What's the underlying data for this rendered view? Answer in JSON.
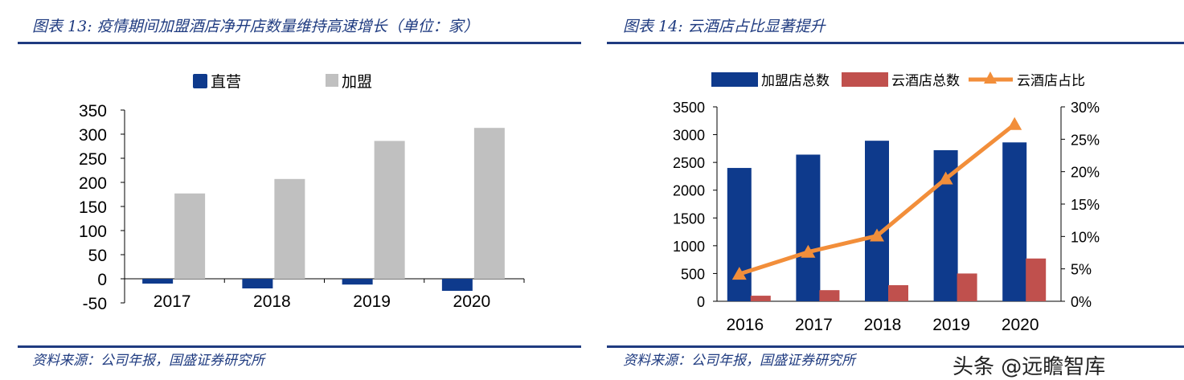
{
  "left": {
    "title": "图表 13:  疫情期间加盟酒店净开店数量维持高速增长（单位：家）",
    "source": "资料来源：公司年报，国盛证券研究所"
  },
  "right": {
    "title": "图表 14:  云酒店占比显著提升",
    "source": "资料来源：公司年报，国盛证券研究所"
  },
  "watermark": "头条 @远瞻智库",
  "colors": {
    "navy": "#0e3a8c",
    "gray": "#c0c0c0",
    "red": "#c0504d",
    "orange": "#f28e3a",
    "rule": "#1f3b80"
  },
  "chart_data": [
    {
      "type": "bar",
      "categories": [
        "2017",
        "2018",
        "2019",
        "2020"
      ],
      "series": [
        {
          "name": "直营",
          "values": [
            -10,
            -20,
            -12,
            -25
          ]
        },
        {
          "name": "加盟",
          "values": [
            177,
            207,
            286,
            313
          ]
        }
      ],
      "ylim": [
        -50,
        350
      ],
      "yticks": [
        "350",
        "300",
        "250",
        "200",
        "150",
        "100",
        "50",
        "0",
        "-50"
      ],
      "legend": "top-center",
      "grid": false
    },
    {
      "type": "bar",
      "categories": [
        "2016",
        "2017",
        "2018",
        "2019",
        "2020"
      ],
      "series": [
        {
          "name": "加盟店总数",
          "values": [
            2400,
            2640,
            2890,
            2720,
            2860
          ],
          "axis": "left"
        },
        {
          "name": "云酒店总数",
          "values": [
            100,
            200,
            290,
            500,
            770
          ],
          "axis": "left"
        },
        {
          "name": "云酒店占比",
          "type": "line",
          "values": [
            4.2,
            7.6,
            10.1,
            18.9,
            27.3
          ],
          "axis": "right"
        }
      ],
      "ylim": [
        0,
        3500
      ],
      "yticks": [
        "3500",
        "3000",
        "2500",
        "2000",
        "1500",
        "1000",
        "500",
        "0"
      ],
      "y2lim": [
        0,
        30
      ],
      "y2ticks": [
        "30%",
        "25%",
        "20%",
        "15%",
        "10%",
        "5%",
        "0%"
      ],
      "legend": "top-center",
      "grid": false
    }
  ]
}
